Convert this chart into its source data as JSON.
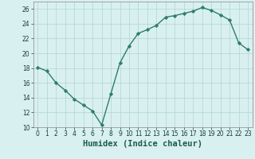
{
  "x": [
    0,
    1,
    2,
    3,
    4,
    5,
    6,
    7,
    8,
    9,
    10,
    11,
    12,
    13,
    14,
    15,
    16,
    17,
    18,
    19,
    20,
    21,
    22,
    23
  ],
  "y": [
    18.1,
    17.6,
    16.0,
    15.0,
    13.8,
    13.0,
    12.2,
    10.3,
    14.5,
    18.7,
    21.0,
    22.7,
    23.2,
    23.8,
    24.9,
    25.1,
    25.4,
    25.7,
    26.2,
    25.8,
    25.2,
    24.5,
    21.4,
    20.5
  ],
  "line_color": "#2e7d6e",
  "marker": "D",
  "markersize": 2.2,
  "linewidth": 1.0,
  "bg_color": "#d9f0f0",
  "grid_color": "#b8d8d8",
  "xlabel": "Humidex (Indice chaleur)",
  "xlabel_fontsize": 7.5,
  "ylim": [
    10,
    27
  ],
  "xlim": [
    -0.5,
    23.5
  ],
  "yticks": [
    10,
    12,
    14,
    16,
    18,
    20,
    22,
    24,
    26
  ],
  "xticks": [
    0,
    1,
    2,
    3,
    4,
    5,
    6,
    7,
    8,
    9,
    10,
    11,
    12,
    13,
    14,
    15,
    16,
    17,
    18,
    19,
    20,
    21,
    22,
    23
  ],
  "tick_fontsize": 5.5
}
